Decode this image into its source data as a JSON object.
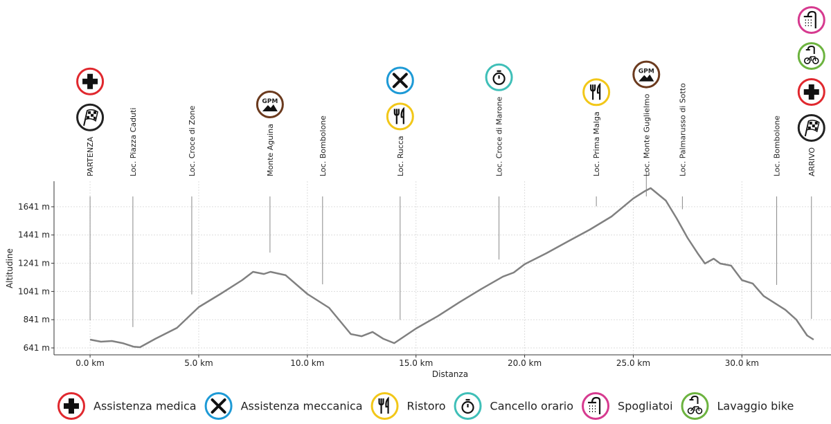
{
  "chart_data": {
    "type": "line",
    "xlabel": "Distanza",
    "ylabel": "Altitudine",
    "xlim": [
      -1.66,
      34.1
    ],
    "ylim": [
      592,
      1822
    ],
    "xticks": [
      {
        "value": 0,
        "label": "0.0 km"
      },
      {
        "value": 5,
        "label": "5.0 km"
      },
      {
        "value": 10,
        "label": "10.0 km"
      },
      {
        "value": 15,
        "label": "15.0 km"
      },
      {
        "value": 20,
        "label": "20.0 km"
      },
      {
        "value": 25,
        "label": "25.0 km"
      },
      {
        "value": 30,
        "label": "30.0 km"
      }
    ],
    "yticks": [
      {
        "value": 641,
        "label": "641 m"
      },
      {
        "value": 841,
        "label": "841 m"
      },
      {
        "value": 1041,
        "label": "1041 m"
      },
      {
        "value": 1241,
        "label": "1241 m"
      },
      {
        "value": 1441,
        "label": "1441 m"
      },
      {
        "value": 1641,
        "label": "1641 m"
      }
    ],
    "grid": true,
    "series": [
      {
        "name": "Altitudine",
        "color": "#808080",
        "x": [
          0,
          0.5,
          1,
          1.5,
          2,
          2.3,
          3,
          4,
          5,
          6,
          7,
          7.5,
          8,
          8.3,
          9,
          10,
          11,
          12,
          12.5,
          13,
          13.5,
          14,
          15,
          16,
          17,
          18,
          19,
          19.5,
          20,
          21,
          22,
          23,
          24,
          25,
          25.5,
          25.8,
          26.5,
          27,
          27.5,
          28,
          28.3,
          28.7,
          29,
          29.5,
          30,
          30.5,
          31,
          32,
          32.5,
          33,
          33.3
        ],
        "values": [
          700,
          685,
          690,
          675,
          650,
          646,
          705,
          783,
          930,
          1023,
          1121,
          1180,
          1165,
          1180,
          1156,
          1023,
          925,
          739,
          724,
          754,
          705,
          675,
          778,
          866,
          965,
          1058,
          1146,
          1175,
          1234,
          1312,
          1396,
          1479,
          1572,
          1700,
          1749,
          1773,
          1685,
          1558,
          1420,
          1303,
          1239,
          1273,
          1239,
          1224,
          1121,
          1097,
          1009,
          911,
          842,
          729,
          700
        ]
      }
    ],
    "icons": {
      "medical": {
        "color": "#e0282e"
      },
      "mechanic": {
        "color": "#1e9ad6"
      },
      "food": {
        "color": "#f2c718"
      },
      "time": {
        "color": "#3fbfb8"
      },
      "shower": {
        "color": "#d63a8f"
      },
      "bike": {
        "color": "#6cb33f"
      },
      "flag": {
        "color": "#222222"
      },
      "gpm": {
        "color": "#6b3a1e",
        "label": "GPM"
      }
    },
    "waypoints": [
      {
        "label": "PARTENZA",
        "x": 0,
        "icons": [
          "medical",
          "flag"
        ]
      },
      {
        "label": "Loc. Piazza Caduti",
        "x": 1.97,
        "icons": []
      },
      {
        "label": "Loc. Croce di Zone",
        "x": 4.68,
        "icons": []
      },
      {
        "label": "Monte Aguina",
        "x": 8.28,
        "icons": [
          "gpm"
        ]
      },
      {
        "label": "Loc. Bombolone",
        "x": 10.7,
        "icons": []
      },
      {
        "label": "Loc. Rucca",
        "x": 14.27,
        "icons": [
          "mechanic",
          "food"
        ]
      },
      {
        "label": "Loc. Croce di Marone",
        "x": 18.82,
        "icons": [
          "time"
        ]
      },
      {
        "label": "Loc. Prima Malga",
        "x": 23.3,
        "icons": [
          "food"
        ]
      },
      {
        "label": "Loc. Monte Guglielmo",
        "x": 25.6,
        "icons": [
          "gpm"
        ]
      },
      {
        "label": "Loc. Palmarusso di Sotto",
        "x": 27.26,
        "icons": []
      },
      {
        "label": "Loc. Bombolone",
        "x": 31.6,
        "icons": []
      },
      {
        "label": "ARRIVO",
        "x": 33.2,
        "icons": [
          "shower",
          "bike",
          "medical",
          "flag"
        ]
      }
    ],
    "legend": [
      {
        "icon": "medical",
        "label": "Assistenza medica"
      },
      {
        "icon": "mechanic",
        "label": "Assistenza meccanica"
      },
      {
        "icon": "food",
        "label": "Ristoro"
      },
      {
        "icon": "time",
        "label": "Cancello orario"
      },
      {
        "icon": "shower",
        "label": "Spogliatoi"
      },
      {
        "icon": "bike",
        "label": "Lavaggio bike"
      }
    ]
  }
}
